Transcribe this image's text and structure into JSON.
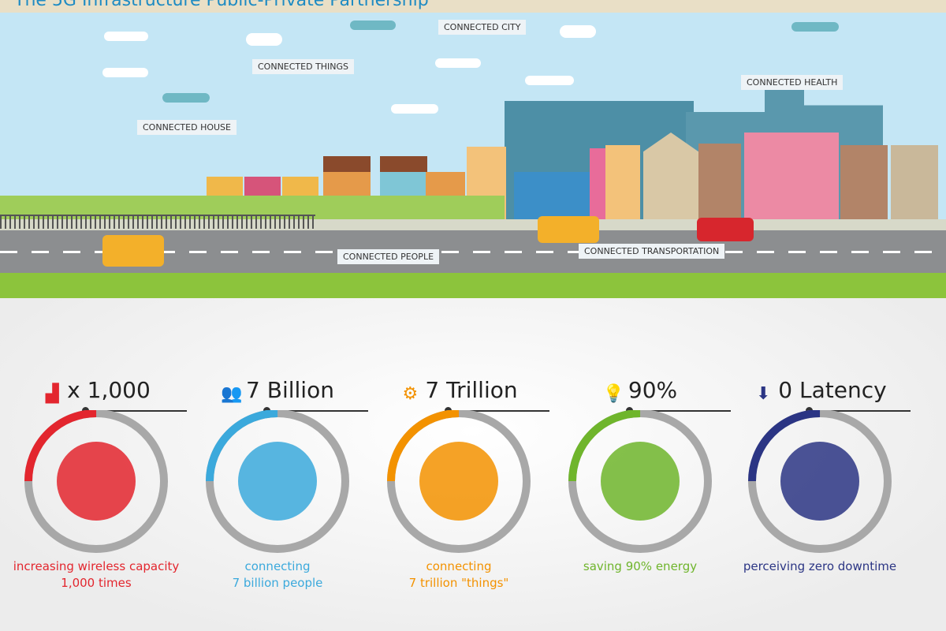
{
  "title": "The 5G Infrastructure Public-Private Partnership",
  "scene_labels": {
    "connected_city": "CONNECTED  CITY",
    "connected_things": "CONNECTED THINGS",
    "connected_house": "CONNECTED HOUSE",
    "connected_health": "CONNECTED HEALTH",
    "connected_people": "CONNECTED  PEOPLE",
    "connected_transportation": "CONNECTED TRANSPORTATION"
  },
  "stats": [
    {
      "headline": "x 1,000",
      "icon": "signal-bars-icon",
      "caption1": "increasing wireless capacity",
      "caption2": "1,000 times",
      "color": "#e3262e",
      "arc_fraction": 0.25
    },
    {
      "headline": "7 Billion",
      "icon": "people-group-icon",
      "caption1": "connecting",
      "caption2": "7 billion people",
      "color": "#3ba9dc",
      "arc_fraction": 0.25
    },
    {
      "headline": "7 Trillion",
      "icon": "gears-icon",
      "caption1": "connecting",
      "caption2": "7 trillion \"things\"",
      "color": "#f39200",
      "arc_fraction": 0.25
    },
    {
      "headline": "90%",
      "icon": "lightbulb-icon",
      "caption1": "saving 90% energy",
      "caption2": "",
      "color": "#6fb52c",
      "arc_fraction": 0.25
    },
    {
      "headline": "0 Latency",
      "icon": "download-icon",
      "caption1": "perceiving zero downtime",
      "caption2": "",
      "color": "#2b3584",
      "arc_fraction": 0.25
    }
  ]
}
